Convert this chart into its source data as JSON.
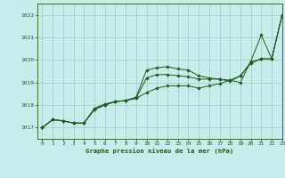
{
  "title": "Graphe pression niveau de la mer (hPa)",
  "bg_color": "#c8ecec",
  "plot_bg_color": "#c8ecec",
  "grid_color": "#99ccbb",
  "line_color": "#1a5c1a",
  "marker_color": "#1a5c1a",
  "xlim": [
    -0.5,
    23
  ],
  "ylim": [
    1016.5,
    1022.5
  ],
  "yticks": [
    1017,
    1018,
    1019,
    1020,
    1021,
    1022
  ],
  "xticks": [
    0,
    1,
    2,
    3,
    4,
    5,
    6,
    7,
    8,
    9,
    10,
    11,
    12,
    13,
    14,
    15,
    16,
    17,
    18,
    19,
    20,
    21,
    22,
    23
  ],
  "lines": [
    [
      1017.0,
      1017.35,
      1017.3,
      1017.2,
      1017.2,
      1017.85,
      1018.05,
      1018.15,
      1018.2,
      1018.35,
      1019.55,
      1019.65,
      1019.7,
      1019.6,
      1019.55,
      1019.3,
      1019.2,
      1019.15,
      1019.1,
      1019.0,
      1019.95,
      1021.1,
      1020.05,
      1022.0
    ],
    [
      1017.0,
      1017.35,
      1017.3,
      1017.2,
      1017.2,
      1017.8,
      1018.0,
      1018.15,
      1018.2,
      1018.3,
      1019.2,
      1019.35,
      1019.35,
      1019.3,
      1019.25,
      1019.15,
      1019.15,
      1019.15,
      1019.05,
      1019.3,
      1019.9,
      1020.05,
      1020.05,
      1022.0
    ],
    [
      1017.0,
      1017.35,
      1017.3,
      1017.2,
      1017.2,
      1017.8,
      1018.0,
      1018.15,
      1018.2,
      1018.3,
      1018.55,
      1018.75,
      1018.85,
      1018.85,
      1018.85,
      1018.75,
      1018.85,
      1018.95,
      1019.1,
      1019.3,
      1019.85,
      1020.05,
      1020.05,
      1022.0
    ]
  ]
}
